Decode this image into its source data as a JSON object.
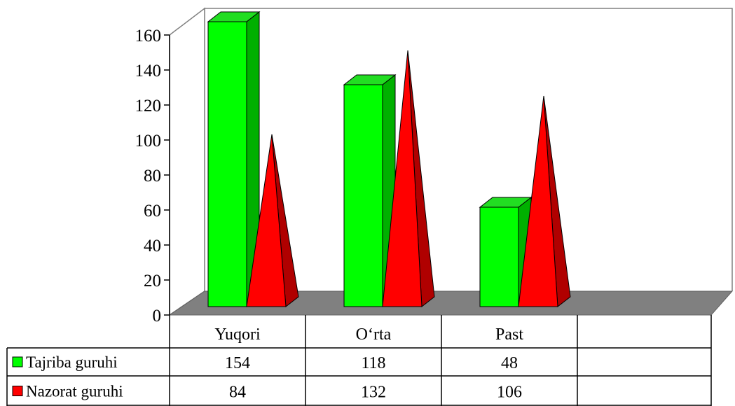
{
  "chart_data": {
    "type": "bar",
    "style": "3d-clustered-column-and-pyramid-with-data-table",
    "categories": [
      "Yuqori",
      "O‘rta",
      "Past"
    ],
    "series": [
      {
        "name": "Tajriba guruhi",
        "values": [
          154,
          118,
          48
        ],
        "shape": "column",
        "color": "#00ff00",
        "side_color": "#00b000",
        "top_color": "#22dd22"
      },
      {
        "name": "Nazorat guruhi",
        "values": [
          84,
          132,
          106
        ],
        "shape": "pyramid",
        "color": "#ff0000",
        "side_color": "#b00000"
      }
    ],
    "ylim": [
      0,
      160
    ],
    "yticks": [
      0,
      20,
      40,
      60,
      80,
      100,
      120,
      140,
      160
    ],
    "grid": false,
    "floor_color": "#808080",
    "legend": "data-table-left",
    "title": "",
    "xlabel": "",
    "ylabel": ""
  }
}
